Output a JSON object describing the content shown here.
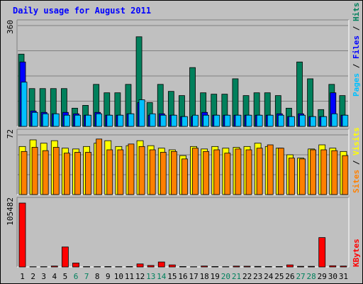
{
  "title": "Daily usage for August 2011",
  "colors": {
    "hits": "#00805c",
    "files": "#0000ff",
    "pages": "#00c0ff",
    "visits": "#ffff00",
    "sites": "#ff8000",
    "kbytes": "#ff0000",
    "weekend_day": "#00805c",
    "weekday": "#000000",
    "title": "#0000ff",
    "panel_bg": "#c0c0c0"
  },
  "chart_data": [
    {
      "type": "bar",
      "panel": "hits_files_pages",
      "ymax_label": "360",
      "ylim": [
        0,
        360
      ],
      "legend": {
        "pages": "Pages",
        "files": "Files",
        "hits": "Hits",
        "sep": " / "
      },
      "series": [
        {
          "name": "Hits",
          "values": [
            258,
            135,
            135,
            135,
            135,
            65,
            75,
            150,
            120,
            120,
            150,
            320,
            85,
            150,
            125,
            110,
            210,
            120,
            115,
            115,
            170,
            110,
            120,
            120,
            110,
            65,
            230,
            170,
            60,
            150,
            110
          ]
        },
        {
          "name": "Files",
          "values": [
            230,
            55,
            50,
            45,
            50,
            45,
            40,
            50,
            40,
            40,
            45,
            85,
            40,
            45,
            40,
            35,
            35,
            50,
            40,
            40,
            40,
            40,
            40,
            40,
            45,
            35,
            45,
            35,
            35,
            120,
            40
          ]
        },
        {
          "name": "Pages",
          "values": [
            158,
            50,
            45,
            45,
            40,
            40,
            40,
            45,
            40,
            40,
            45,
            95,
            45,
            40,
            40,
            35,
            40,
            40,
            40,
            40,
            40,
            40,
            40,
            40,
            40,
            35,
            40,
            35,
            35,
            45,
            40
          ]
        }
      ]
    },
    {
      "type": "bar",
      "panel": "visits_sites",
      "ymax_label": "72",
      "ylim": [
        0,
        72
      ],
      "legend": {
        "sites": "Sites",
        "visits": "Visits",
        "sep": " / "
      },
      "series": [
        {
          "name": "Visits",
          "values": [
            58,
            66,
            62,
            65,
            56,
            55,
            58,
            62,
            65,
            58,
            59,
            65,
            59,
            56,
            54,
            47,
            58,
            55,
            58,
            56,
            57,
            58,
            62,
            58,
            56,
            48,
            44,
            55,
            60,
            56,
            52
          ]
        },
        {
          "name": "Sites",
          "values": [
            52,
            57,
            53,
            57,
            50,
            51,
            51,
            67,
            54,
            54,
            61,
            58,
            54,
            51,
            52,
            43,
            56,
            52,
            54,
            50,
            55,
            54,
            56,
            60,
            56,
            44,
            43,
            54,
            54,
            53,
            47
          ]
        }
      ]
    },
    {
      "type": "bar",
      "panel": "kbytes",
      "ymax_label": "105482",
      "ylim": [
        0,
        105482
      ],
      "legend": {
        "kbytes": "KBytes"
      },
      "series": [
        {
          "name": "KBytes",
          "values": [
            105482,
            400,
            500,
            1500,
            33000,
            6500,
            600,
            500,
            700,
            500,
            700,
            5000,
            2500,
            8200,
            3400,
            700,
            400,
            1500,
            700,
            500,
            1400,
            1200,
            900,
            700,
            700,
            3400,
            1000,
            1000,
            48500,
            2000,
            1500
          ]
        }
      ]
    }
  ],
  "x_axis": {
    "days": [
      "1",
      "2",
      "3",
      "4",
      "5",
      "6",
      "7",
      "8",
      "9",
      "10",
      "11",
      "12",
      "13",
      "14",
      "15",
      "16",
      "17",
      "18",
      "19",
      "20",
      "21",
      "22",
      "23",
      "24",
      "25",
      "26",
      "27",
      "28",
      "29",
      "30",
      "31"
    ],
    "weekend": [
      false,
      false,
      false,
      false,
      false,
      true,
      true,
      false,
      false,
      false,
      false,
      false,
      true,
      true,
      false,
      false,
      false,
      false,
      false,
      true,
      true,
      false,
      false,
      false,
      false,
      false,
      true,
      true,
      false,
      false,
      false
    ]
  }
}
